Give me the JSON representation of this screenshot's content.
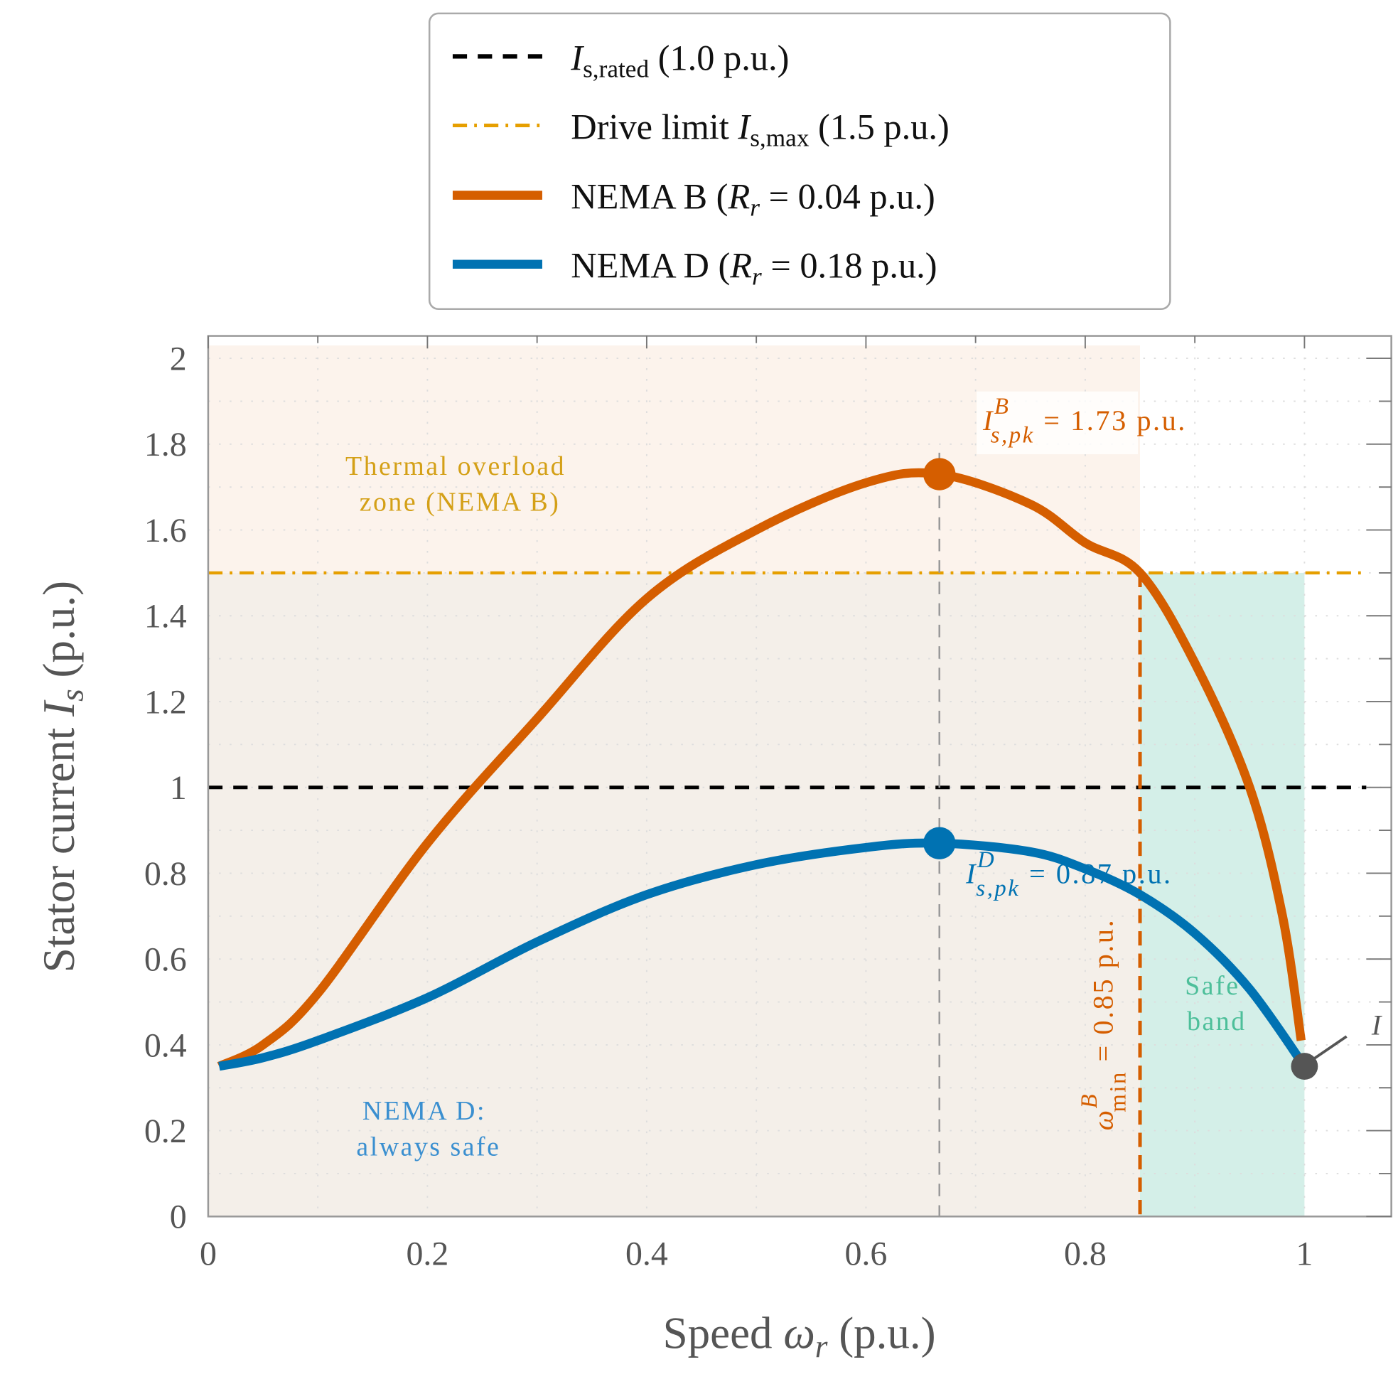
{
  "chart_data": {
    "type": "line",
    "xlabel": "Speed ω_r (p.u.)",
    "xlabel_parts": {
      "main": "Speed ",
      "sym": "ω",
      "sub": "r",
      "unit": " (p.u.)"
    },
    "ylabel": "Stator current I_s (p.u.)",
    "ylabel_parts": {
      "main": "Stator current ",
      "sym": "I",
      "sub": "s",
      "unit": " (p.u.)"
    },
    "xlim": [
      0,
      1.08
    ],
    "ylim": [
      0,
      2.05
    ],
    "grid": true,
    "legend_placement": "top-center (outside)",
    "x_ticks": [
      "0",
      "0.2",
      "0.4",
      "0.6",
      "0.8",
      "1"
    ],
    "x_tick_values": [
      0,
      0.2,
      0.4,
      0.6,
      0.8,
      1
    ],
    "y_ticks": [
      "0",
      "0.2",
      "0.4",
      "0.6",
      "0.8",
      "1",
      "1.2",
      "1.4",
      "1.6",
      "1.8",
      "2"
    ],
    "y_tick_values": [
      0,
      0.2,
      0.4,
      0.6,
      0.8,
      1,
      1.2,
      1.4,
      1.6,
      1.8,
      2
    ],
    "series": [
      {
        "name": "NEMA B (R_r = 0.04 p.u.)",
        "color": "#d55e00",
        "x": [
          0.01,
          0.05,
          0.1,
          0.2,
          0.3,
          0.4,
          0.5,
          0.6,
          0.667,
          0.75,
          0.8,
          0.85,
          0.9,
          0.95,
          0.98,
          0.997
        ],
        "y": [
          0.35,
          0.4,
          0.52,
          0.87,
          1.16,
          1.44,
          1.6,
          1.71,
          1.73,
          1.66,
          1.57,
          1.5,
          1.29,
          1.0,
          0.7,
          0.41
        ]
      },
      {
        "name": "NEMA D (R_r = 0.18 p.u.)",
        "color": "#0072b2",
        "x": [
          0.01,
          0.05,
          0.1,
          0.2,
          0.3,
          0.4,
          0.5,
          0.6,
          0.667,
          0.75,
          0.8,
          0.85,
          0.9,
          0.95,
          1.0
        ],
        "y": [
          0.35,
          0.37,
          0.41,
          0.51,
          0.64,
          0.75,
          0.82,
          0.86,
          0.87,
          0.85,
          0.81,
          0.75,
          0.66,
          0.53,
          0.35
        ]
      }
    ],
    "reference_lines": [
      {
        "name": "I_s,rated (1.0 p.u.)",
        "y": 1.0,
        "style": "dashed",
        "color": "#000000"
      },
      {
        "name": "Drive limit I_s,max (1.5 p.u.)",
        "y": 1.5,
        "style": "dash-dot",
        "color": "#e69f00"
      }
    ],
    "vertical_lines": [
      {
        "x": 0.667,
        "style": "dashed",
        "color": "#999999"
      },
      {
        "x": 0.85,
        "style": "dashed",
        "color": "#d55e00"
      }
    ],
    "regions": [
      {
        "name": "thermal-overload",
        "x": [
          0,
          0.85
        ],
        "y": [
          1.5,
          2.03
        ],
        "color": "#fcf3ec"
      },
      {
        "name": "operating",
        "x": [
          0,
          0.85
        ],
        "y": [
          0,
          1.5
        ],
        "color": "#f4efe9"
      },
      {
        "name": "safe-band",
        "x": [
          0.85,
          1.0
        ],
        "y": [
          0,
          1.5
        ],
        "color": "#d4efe8"
      }
    ],
    "markers": [
      {
        "x": 0.667,
        "y": 1.73,
        "color": "#d55e00"
      },
      {
        "x": 0.667,
        "y": 0.87,
        "color": "#0072b2"
      },
      {
        "x": 1.0,
        "y": 0.35,
        "color": "#555555"
      }
    ],
    "annotations": {
      "peak_b": {
        "sym": "I",
        "sup": "B",
        "sub": "s,pk",
        "rest": " = 1.73 p.u."
      },
      "peak_d": {
        "sym": "I",
        "sup": "D",
        "sub": "s,pk",
        "rest": " = 0.87 p.u."
      },
      "wmin": {
        "sym": "ω",
        "sup": "B",
        "sub": "min",
        "rest": " = 0.85 p.u."
      },
      "thermal": [
        "Thermal overload",
        "zone (NEMA B)"
      ],
      "nema_d": [
        "NEMA D:",
        "always safe"
      ],
      "safe": [
        "Safe",
        "band"
      ],
      "end_label": "I"
    },
    "legend": [
      {
        "sym": "I",
        "sub": "s,rated",
        "text": " (1.0 p.u.)",
        "pre": ""
      },
      {
        "pre": "Drive limit ",
        "sym": "I",
        "sub": "s,max",
        "text": " (1.5 p.u.)"
      },
      {
        "pre": "NEMA B  (",
        "sym": "R",
        "sub": "r",
        "text": " = 0.04 p.u.)"
      },
      {
        "pre": "NEMA D  (",
        "sym": "R",
        "sub": "r",
        "text": " = 0.18 p.u.)"
      }
    ]
  }
}
